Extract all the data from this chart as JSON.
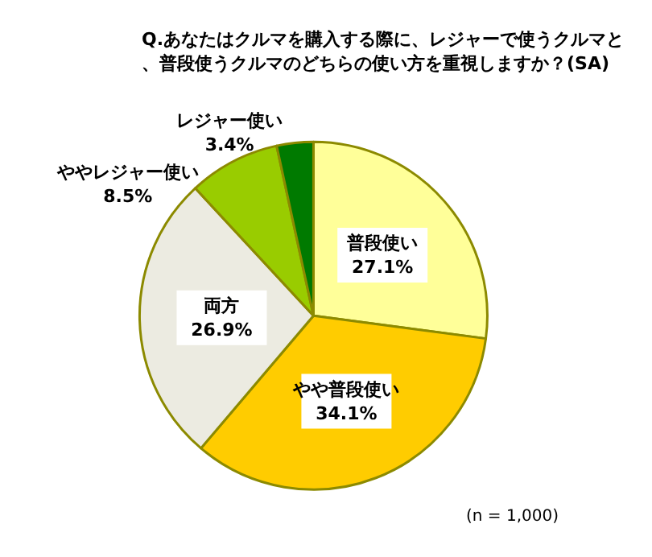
{
  "chart_data": {
    "type": "pie",
    "title": "Q.あなたはクルマを購入する際に、レジャーで使うクルマと、普段使うクルマのどちらの使い方を重視しますか？(SA)",
    "categories": [
      "普段使い",
      "やや普段使い",
      "両方",
      "ややレジャー使い",
      "レジャー使い"
    ],
    "values": [
      27.1,
      34.1,
      26.9,
      8.5,
      3.4
    ],
    "colors": [
      "#ffff99",
      "#ffcc00",
      "#ecebe1",
      "#99cc00",
      "#007a00"
    ],
    "value_labels": [
      "27.1%",
      "34.1%",
      "26.9%",
      "8.5%",
      "3.4%"
    ],
    "annotations": [
      "(n = 1,000)"
    ]
  }
}
